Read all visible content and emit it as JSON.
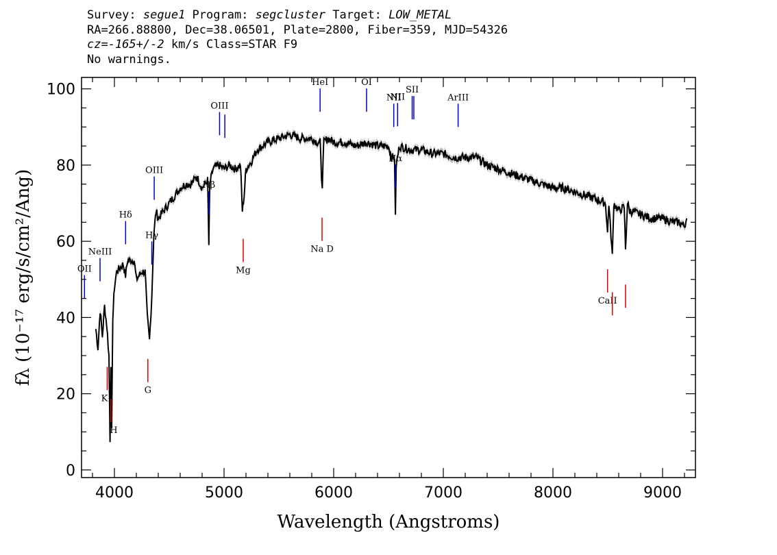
{
  "header": {
    "line1": {
      "survey_label": "Survey: ",
      "survey": "segue1",
      "program_label": " Program: ",
      "program": "segcluster",
      "target_label": " Target: ",
      "target": "LOW_METAL"
    },
    "line2": "RA=266.88800, Dec=38.06501, Plate=2800, Fiber=359, MJD=54326",
    "line3": {
      "cz": "cz=-165+/-2",
      "rest": " km/s Class=STAR F9"
    },
    "line4": "No warnings."
  },
  "chart_data": {
    "type": "line",
    "xlabel": "Wavelength (Angstroms)",
    "ylabel": "fλ (10⁻¹⁷ erg/s/cm²/Ang)",
    "xlim": [
      3700,
      9300
    ],
    "ylim": [
      -2,
      103
    ],
    "xticks": [
      4000,
      5000,
      6000,
      7000,
      8000,
      9000
    ],
    "yticks": [
      0,
      20,
      40,
      60,
      80,
      100
    ],
    "grid": false,
    "colors": {
      "spectrum": "#000000",
      "error_band": "#c0c0c0",
      "emission_lines": "#0000cc",
      "absorption_lines": "#dd0000"
    },
    "series": [
      {
        "x": [
          3830,
          3850,
          3870,
          3890,
          3910,
          3930,
          3950,
          3960,
          3968,
          3975,
          3985,
          4000,
          4020,
          4050,
          4080,
          4101,
          4120,
          4150,
          4180,
          4200,
          4250,
          4280,
          4300,
          4320,
          4340,
          4360,
          4380,
          4400,
          4450,
          4500,
          4550,
          4600,
          4650,
          4700,
          4750,
          4800,
          4850,
          4861,
          4870,
          4900,
          4950,
          5000,
          5050,
          5100,
          5150,
          5167,
          5183,
          5200,
          5250,
          5300,
          5400,
          5500,
          5600,
          5700,
          5800,
          5850,
          5876,
          5889,
          5896,
          5910,
          5950,
          6000,
          6100,
          6200,
          6300,
          6400,
          6500,
          6530,
          6555,
          6563,
          6570,
          6600,
          6700,
          6800,
          6900,
          7000,
          7100,
          7200,
          7300,
          7400,
          7500,
          7600,
          7700,
          7800,
          7900,
          8000,
          8100,
          8200,
          8300,
          8400,
          8480,
          8498,
          8510,
          8542,
          8555,
          8600,
          8650,
          8662,
          8680,
          8700,
          8800,
          8900,
          9000,
          9100,
          9150,
          9200,
          9220
        ],
        "y": [
          37,
          32,
          42,
          35,
          43,
          38,
          30,
          8,
          28,
          10,
          40,
          48,
          52,
          53,
          54,
          51,
          55,
          55,
          55,
          50,
          52,
          52,
          40,
          34,
          45,
          62,
          68,
          66,
          68,
          70,
          72,
          74,
          75,
          75,
          77,
          74,
          76,
          59,
          75,
          79,
          80,
          79,
          80,
          79,
          80,
          68,
          72,
          79,
          81,
          84,
          86,
          87,
          88,
          87,
          87,
          86,
          86,
          77,
          75,
          86,
          87,
          86,
          86,
          85,
          86,
          85,
          85,
          82,
          82,
          66,
          80,
          85,
          84,
          84,
          83,
          83,
          82,
          82,
          82,
          80,
          79,
          78,
          77,
          76,
          75,
          74,
          74,
          73,
          72,
          71,
          70,
          62,
          70,
          56,
          70,
          68,
          69,
          58,
          70,
          68,
          67,
          66,
          66,
          65,
          65,
          64,
          66
        ]
      }
    ],
    "emission_lines": [
      {
        "label": "OII",
        "x": 3727
      },
      {
        "label": "NeIII",
        "x": 3869
      },
      {
        "label": "Hδ",
        "x": 4102
      },
      {
        "label": "Hγ",
        "x": 4341
      },
      {
        "label": "OIII",
        "x": 4363
      },
      {
        "label": "Hβ",
        "x": 4861
      },
      {
        "label": "OIII",
        "x": 4959
      },
      {
        "label": "OIII",
        "x": 5007
      },
      {
        "label": "HeI",
        "x": 5876
      },
      {
        "label": "OI",
        "x": 6300
      },
      {
        "label": "NII",
        "x": 6548
      },
      {
        "label": "Hα",
        "x": 6563
      },
      {
        "label": "NII",
        "x": 6583
      },
      {
        "label": "SII",
        "x": 6716
      },
      {
        "label": "SII",
        "x": 6731
      },
      {
        "label": "ArIII",
        "x": 7135
      }
    ],
    "absorption_lines": [
      {
        "label": "K",
        "x": 3934
      },
      {
        "label": "H",
        "x": 3968
      },
      {
        "label": "G",
        "x": 4305
      },
      {
        "label": "Mg",
        "x": 5175
      },
      {
        "label": "Na D",
        "x": 5894
      },
      {
        "label": "CaII",
        "x": 8498
      },
      {
        "label": "CaII",
        "x": 8542
      },
      {
        "label": "CaII",
        "x": 8662
      }
    ]
  }
}
